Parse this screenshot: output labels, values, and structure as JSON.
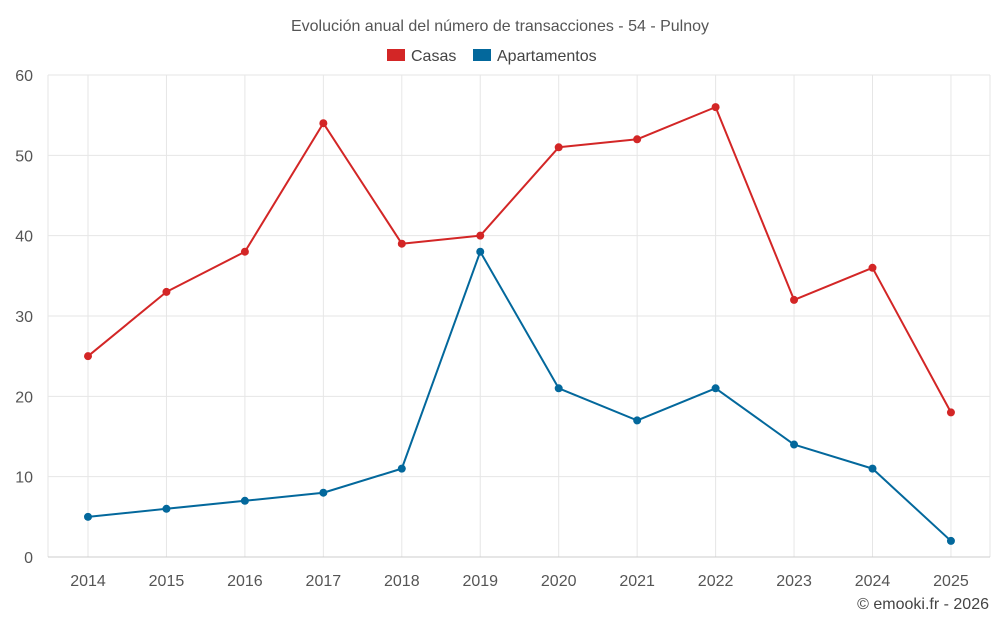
{
  "chart_data": {
    "type": "line",
    "title": "Evolución anual del número de transacciones - 54 - Pulnoy",
    "categories": [
      "2014",
      "2015",
      "2016",
      "2017",
      "2018",
      "2019",
      "2020",
      "2021",
      "2022",
      "2023",
      "2024",
      "2025"
    ],
    "series": [
      {
        "name": "Casas",
        "color": "#d32626",
        "values": [
          25,
          33,
          38,
          54,
          39,
          40,
          51,
          52,
          56,
          32,
          36,
          18
        ]
      },
      {
        "name": "Apartamentos",
        "color": "#03689c",
        "values": [
          5,
          6,
          7,
          8,
          11,
          38,
          21,
          17,
          21,
          14,
          11,
          2
        ]
      }
    ],
    "ylim": [
      0,
      60
    ],
    "yticks": [
      0,
      10,
      20,
      30,
      40,
      50,
      60
    ],
    "xlabel": "",
    "ylabel": "",
    "grid": true,
    "legend": "top-center",
    "credit": "© emooki.fr - 2026"
  }
}
